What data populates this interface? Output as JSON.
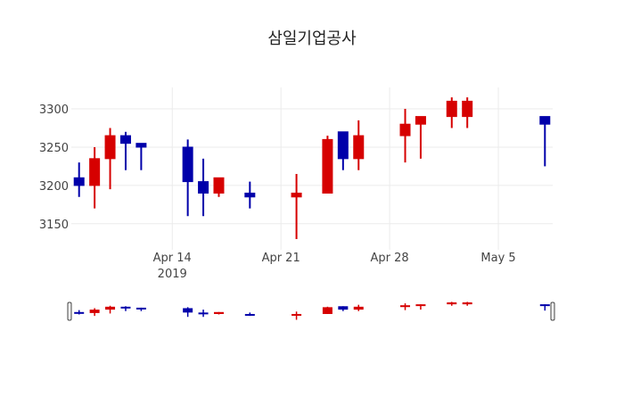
{
  "chart_data": {
    "type": "candlestick",
    "title": "삼일기업공사",
    "xlabel": "",
    "ylabel": "",
    "x_ticks": [
      {
        "date": "2019-04-14",
        "label": "Apr 14",
        "sublabel": "2019"
      },
      {
        "date": "2019-04-21",
        "label": "Apr 21",
        "sublabel": ""
      },
      {
        "date": "2019-04-28",
        "label": "Apr 28",
        "sublabel": ""
      },
      {
        "date": "2019-05-05",
        "label": "May 5",
        "sublabel": ""
      }
    ],
    "y_ticks": [
      3150,
      3200,
      3250,
      3300
    ],
    "xlim": [
      "2019-04-07T12:00",
      "2019-05-08T12:00"
    ],
    "ylim": [
      3116,
      3328
    ],
    "grid": true,
    "rangeslider": true,
    "increasing_color": "#d60000",
    "decreasing_color": "#0000aa",
    "series": [
      {
        "date": "2019-04-08",
        "open": 3210,
        "high": 3230,
        "low": 3185,
        "close": 3200
      },
      {
        "date": "2019-04-09",
        "open": 3200,
        "high": 3250,
        "low": 3170,
        "close": 3235
      },
      {
        "date": "2019-04-10",
        "open": 3235,
        "high": 3275,
        "low": 3195,
        "close": 3265
      },
      {
        "date": "2019-04-11",
        "open": 3265,
        "high": 3270,
        "low": 3220,
        "close": 3255
      },
      {
        "date": "2019-04-12",
        "open": 3255,
        "high": 3255,
        "low": 3220,
        "close": 3250
      },
      {
        "date": "2019-04-15",
        "open": 3250,
        "high": 3260,
        "low": 3160,
        "close": 3205
      },
      {
        "date": "2019-04-16",
        "open": 3205,
        "high": 3235,
        "low": 3160,
        "close": 3190
      },
      {
        "date": "2019-04-17",
        "open": 3190,
        "high": 3210,
        "low": 3185,
        "close": 3210
      },
      {
        "date": "2019-04-19",
        "open": 3190,
        "high": 3205,
        "low": 3170,
        "close": 3185
      },
      {
        "date": "2019-04-22",
        "open": 3185,
        "high": 3215,
        "low": 3130,
        "close": 3190
      },
      {
        "date": "2019-04-24",
        "open": 3190,
        "high": 3265,
        "low": 3190,
        "close": 3260
      },
      {
        "date": "2019-04-25",
        "open": 3270,
        "high": 3270,
        "low": 3220,
        "close": 3235
      },
      {
        "date": "2019-04-26",
        "open": 3235,
        "high": 3285,
        "low": 3220,
        "close": 3265
      },
      {
        "date": "2019-04-29",
        "open": 3265,
        "high": 3300,
        "low": 3230,
        "close": 3280
      },
      {
        "date": "2019-04-30",
        "open": 3280,
        "high": 3290,
        "low": 3235,
        "close": 3290
      },
      {
        "date": "2019-05-02",
        "open": 3290,
        "high": 3315,
        "low": 3275,
        "close": 3310
      },
      {
        "date": "2019-05-03",
        "open": 3290,
        "high": 3315,
        "low": 3275,
        "close": 3310
      },
      {
        "date": "2019-05-08",
        "open": 3290,
        "high": 3290,
        "low": 3225,
        "close": 3280
      }
    ]
  }
}
